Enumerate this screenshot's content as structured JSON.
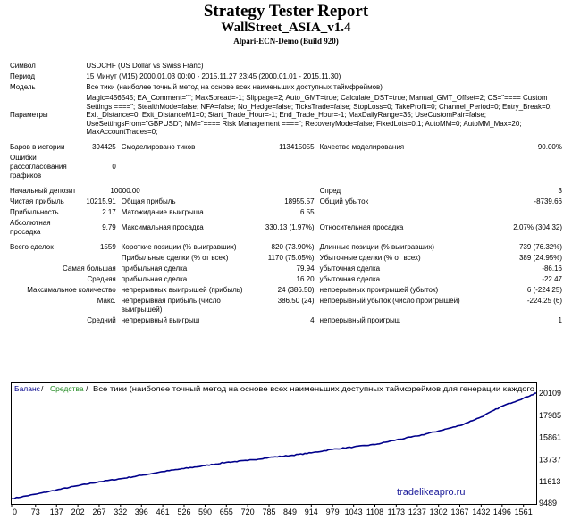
{
  "header": {
    "title": "Strategy Tester Report",
    "expert": "WallStreet_ASIA_v1.4",
    "server": "Alpari-ECN-Demo (Build 920)"
  },
  "rows": {
    "symbol_label": "Символ",
    "symbol_value": "USDCHF (US Dollar vs Swiss Franc)",
    "period_label": "Период",
    "period_value": "15 Минут (M15) 2000.01.03 00:00 - 2015.11.27 23:45 (2000.01.01 - 2015.11.30)",
    "model_label": "Модель",
    "model_value": "Все тики (наиболее точный метод на основе всех наименьших доступных таймфреймов)",
    "params_label": "Параметры",
    "params_value": "Magic=456545; EA_Comment=\"\"; MaxSpread=-1; Slippage=2; Auto_GMT=true; Calculate_DST=true; Manual_GMT_Offset=2; CS=\"==== Custom Settings ====\"; StealthMode=false; NFA=false; No_Hedge=false; TicksTrade=false; StopLoss=0; TakeProfit=0; Channel_Period=0; Entry_Break=0; Exit_Distance=0; Exit_DistanceM1=0; Start_Trade_Hour=-1; End_Trade_Hour=-1; MaxDailyRange=35; UseCustomPair=false; UseSettingsFrom=\"GBPUSD\"; MM=\"==== Risk Management ====\"; RecoveryMode=false; FixedLots=0.1; AutoMM=0; AutoMM_Max=20; MaxAccountTrades=0;",
    "bars_label": "Баров в истории",
    "bars_value": "394425",
    "ticks_label": "Смоделировано тиков",
    "ticks_value": "113415055",
    "quality_label": "Качество моделирования",
    "quality_value": "90.00%",
    "errors_label": "Ошибки рассогласования графиков",
    "errors_value": "0",
    "deposit_label": "Начальный депозит",
    "deposit_value": "10000.00",
    "spread_label": "Спред",
    "spread_value": "3",
    "netprofit_label": "Чистая прибыль",
    "netprofit_value": "10215.91",
    "grossprofit_label": "Общая прибыль",
    "grossprofit_value": "18955.57",
    "grossloss_label": "Общий убыток",
    "grossloss_value": "-8739.66",
    "pf_label": "Прибыльность",
    "pf_value": "2.17",
    "expected_label": "Матожидание выигрыша",
    "expected_value": "6.55",
    "absdd_label": "Абсолютная просадка",
    "absdd_value": "9.79",
    "maxdd_label": "Максимальная просадка",
    "maxdd_value": "330.13 (1.97%)",
    "reldd_label": "Относительная просадка",
    "reldd_value": "2.07% (304.32)",
    "trades_label": "Всего сделок",
    "trades_value": "1559",
    "short_label": "Короткие позиции (% выигравших)",
    "short_value": "820 (73.90%)",
    "long_label": "Длинные позиции (% выигравших)",
    "long_value": "739 (76.32%)",
    "profit_trades_label": "Прибыльные сделки (% от всех)",
    "profit_trades_value": "1170 (75.05%)",
    "loss_trades_label": "Убыточные сделки (% от всех)",
    "loss_trades_value": "389 (24.95%)",
    "largest_label": "Самая большая",
    "largest_profit_label": "прибыльная сделка",
    "largest_profit_value": "79.94",
    "largest_loss_label": "убыточная сделка",
    "largest_loss_value": "-86.16",
    "average_label": "Средняя",
    "average_profit_label": "прибыльная сделка",
    "average_profit_value": "16.20",
    "average_loss_label": "убыточная сделка",
    "average_loss_value": "-22.47",
    "maxcount_label": "Максимальное количество",
    "maxcons_wins_label": "непрерывных выигрышей (прибыль)",
    "maxcons_wins_value": "24 (386.50)",
    "maxcons_losses_label": "непрерывных проигрышей (убыток)",
    "maxcons_losses_value": "6 (-224.25)",
    "max_label": "Макс.",
    "maxcons_profit_label": "непрерывная прибыль (число выигрышей)",
    "maxcons_profit_value": "386.50 (24)",
    "maxcons_loss_label": "непрерывный убыток (число проигрышей)",
    "maxcons_loss_value": "-224.25 (6)",
    "avg_label": "Средний",
    "avgcons_wins_label": "непрерывный выигрыш",
    "avgcons_wins_value": "4",
    "avgcons_losses_label": "непрерывный проигрыш",
    "avgcons_losses_value": "1"
  },
  "chart_data": {
    "type": "line",
    "legend_balance": "Баланс",
    "legend_sep1": " / ",
    "legend_equity": "Средства",
    "legend_sep2": " / ",
    "legend_rest": "Все тики (наиболее точный метод на основе всех наименьших доступных таймфреймов для генерации каждого",
    "watermark": "tradelikeapro.ru",
    "x_ticks": [
      "0",
      "73",
      "137",
      "202",
      "267",
      "332",
      "396",
      "461",
      "526",
      "590",
      "655",
      "720",
      "785",
      "849",
      "914",
      "979",
      "1043",
      "1108",
      "1173",
      "1237",
      "1302",
      "1367",
      "1432",
      "1496",
      "1561"
    ],
    "y_ticks": [
      "20109",
      "17985",
      "15861",
      "13737",
      "11613",
      "9489"
    ],
    "ylim": [
      9489,
      20109
    ],
    "xlim": [
      0,
      1600
    ],
    "series": [
      {
        "name": "Баланс",
        "x": [
          0,
          73,
          137,
          202,
          267,
          332,
          396,
          461,
          526,
          590,
          655,
          720,
          785,
          849,
          914,
          979,
          1043,
          1108,
          1173,
          1237,
          1302,
          1367,
          1432,
          1496,
          1561,
          1600
        ],
        "values": [
          9990,
          10420,
          10830,
          11240,
          11610,
          11900,
          12230,
          12590,
          12880,
          13160,
          13480,
          13650,
          13940,
          14120,
          14380,
          14720,
          14950,
          15180,
          15620,
          16000,
          16480,
          17000,
          17820,
          18860,
          19620,
          20109
        ]
      }
    ],
    "colors": {
      "balance": "#00008b",
      "equity": "#228b22",
      "watermark": "#1a1a99",
      "frame": "#000000"
    }
  }
}
